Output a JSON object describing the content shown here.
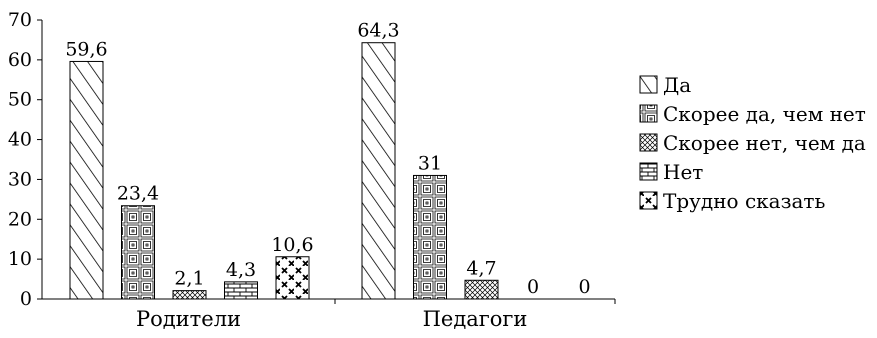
{
  "chart_data": {
    "type": "bar",
    "categories": [
      "Родители",
      "Педагоги"
    ],
    "series": [
      {
        "name": "Да",
        "values": [
          59.6,
          64.3
        ],
        "labels": [
          "59,6",
          "64,3"
        ],
        "pattern": "diagonal"
      },
      {
        "name": "Скорее да, чем нет",
        "values": [
          23.4,
          31
        ],
        "labels": [
          "23,4",
          "31"
        ],
        "pattern": "squares"
      },
      {
        "name": "Скорее нет, чем да",
        "values": [
          2.1,
          4.7
        ],
        "labels": [
          "2,1",
          "4,7"
        ],
        "pattern": "crosshatch"
      },
      {
        "name": "Нет",
        "values": [
          4.3,
          0
        ],
        "labels": [
          "4,3",
          "0"
        ],
        "pattern": "brick"
      },
      {
        "name": "Трудно сказать",
        "values": [
          10.6,
          0
        ],
        "labels": [
          "10,6",
          "0"
        ],
        "pattern": "xmarks"
      }
    ],
    "yticks": [
      "0",
      "10",
      "20",
      "30",
      "40",
      "50",
      "60",
      "70"
    ],
    "ylim": [
      0,
      70
    ],
    "title": "",
    "xlabel": "",
    "ylabel": "",
    "grid": false,
    "legend_position": "right",
    "colors": {
      "ink": "#000000",
      "background": "#ffffff"
    }
  }
}
